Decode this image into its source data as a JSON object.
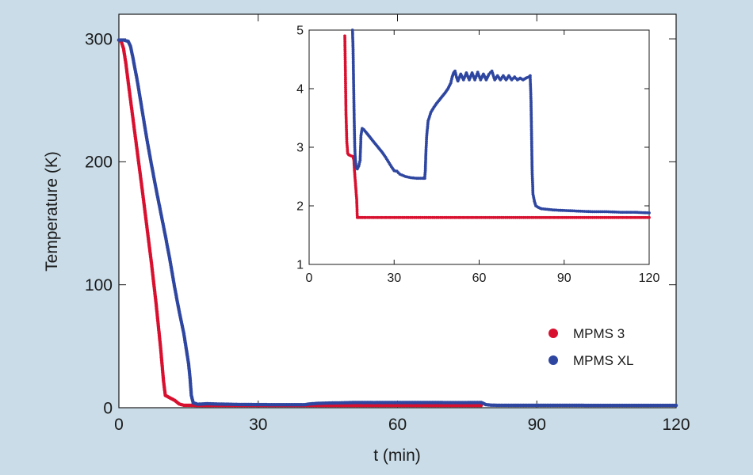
{
  "chart_data": [
    {
      "type": "scatter",
      "title": "",
      "xlabel": "t (min)",
      "ylabel": "Temperature (K)",
      "xlim": [
        0,
        120
      ],
      "ylim": [
        0,
        320
      ],
      "xticks": [
        0,
        30,
        60,
        90,
        120
      ],
      "yticks": [
        0,
        100,
        200,
        300
      ],
      "grid": false,
      "legend": "right",
      "series": [
        {
          "name": "MPMS 3",
          "color": "#d8102f",
          "points": [
            [
              0,
              299
            ],
            [
              0.5,
              298
            ],
            [
              1,
              292
            ],
            [
              1.5,
              280
            ],
            [
              2,
              265
            ],
            [
              3,
              236
            ],
            [
              4,
              207
            ],
            [
              5,
              178
            ],
            [
              6,
              148
            ],
            [
              7,
              118
            ],
            [
              8,
              85
            ],
            [
              9,
              48
            ],
            [
              9.6,
              22
            ],
            [
              10,
              10
            ],
            [
              11,
              8
            ],
            [
              12,
              6
            ],
            [
              13,
              3
            ],
            [
              14,
              2
            ],
            [
              15,
              2
            ],
            [
              16,
              1.9
            ],
            [
              17,
              1.8
            ],
            [
              18,
              1.8
            ],
            [
              20,
              1.8
            ],
            [
              30,
              1.8
            ],
            [
              40,
              1.8
            ],
            [
              50,
              1.8
            ],
            [
              60,
              1.8
            ],
            [
              70,
              1.8
            ],
            [
              78,
              1.8
            ]
          ]
        },
        {
          "name": "MPMS XL",
          "color": "#2e46a0",
          "points": [
            [
              0,
              299
            ],
            [
              1,
              299
            ],
            [
              2,
              298
            ],
            [
              2.5,
              294
            ],
            [
              3,
              285
            ],
            [
              4,
              265
            ],
            [
              5,
              242
            ],
            [
              6,
              219
            ],
            [
              7,
              198
            ],
            [
              8,
              178
            ],
            [
              9,
              159
            ],
            [
              10,
              140
            ],
            [
              11,
              120
            ],
            [
              12,
              98
            ],
            [
              13,
              78
            ],
            [
              14,
              60
            ],
            [
              14.5,
              48
            ],
            [
              15,
              36
            ],
            [
              15.3,
              25
            ],
            [
              15.6,
              10
            ],
            [
              16,
              4
            ],
            [
              17,
              2.8
            ],
            [
              18,
              3
            ],
            [
              19,
              3.2
            ],
            [
              21,
              3
            ],
            [
              25,
              2.7
            ],
            [
              30,
              2.5
            ],
            [
              35,
              2.45
            ],
            [
              40,
              2.45
            ],
            [
              41,
              3
            ],
            [
              43,
              3.6
            ],
            [
              46,
              3.85
            ],
            [
              49,
              4.05
            ],
            [
              51,
              4.25
            ],
            [
              55,
              4.15
            ],
            [
              60,
              4.2
            ],
            [
              65,
              4.2
            ],
            [
              70,
              4.15
            ],
            [
              75,
              4.15
            ],
            [
              78,
              4.2
            ],
            [
              78.5,
              3.5
            ],
            [
              79,
              2.5
            ],
            [
              80,
              2.1
            ],
            [
              82,
              1.98
            ],
            [
              85,
              1.95
            ],
            [
              90,
              1.92
            ],
            [
              100,
              1.9
            ],
            [
              110,
              1.88
            ],
            [
              120,
              1.87
            ]
          ]
        }
      ]
    },
    {
      "type": "scatter",
      "title": "",
      "xlabel": "",
      "ylabel": "",
      "xlim": [
        0,
        120
      ],
      "ylim": [
        1,
        5
      ],
      "xticks": [
        0,
        30,
        60,
        90,
        120
      ],
      "yticks": [
        1,
        2,
        3,
        4,
        5
      ],
      "grid": false,
      "series": [
        {
          "name": "MPMS 3",
          "color": "#d8102f",
          "points": [
            [
              12.6,
              4.9
            ],
            [
              12.8,
              4.3
            ],
            [
              13,
              3.6
            ],
            [
              13.3,
              3.1
            ],
            [
              13.6,
              2.9
            ],
            [
              14,
              2.87
            ],
            [
              15,
              2.85
            ],
            [
              15.5,
              2.84
            ],
            [
              15.8,
              2.78
            ],
            [
              16,
              2.6
            ],
            [
              16.4,
              2.35
            ],
            [
              16.8,
              2.1
            ],
            [
              17,
              1.8
            ],
            [
              20,
              1.8
            ],
            [
              30,
              1.8
            ],
            [
              40,
              1.8
            ],
            [
              50,
              1.8
            ],
            [
              60,
              1.8
            ],
            [
              70,
              1.8
            ],
            [
              80,
              1.8
            ],
            [
              90,
              1.8
            ],
            [
              100,
              1.8
            ],
            [
              110,
              1.8
            ],
            [
              120,
              1.8
            ]
          ]
        },
        {
          "name": "MPMS XL",
          "color": "#2e46a0",
          "points": [
            [
              15.3,
              5
            ],
            [
              15.5,
              4.7
            ],
            [
              15.7,
              4.1
            ],
            [
              15.9,
              3.5
            ],
            [
              16.1,
              3
            ],
            [
              16.3,
              2.8
            ],
            [
              16.6,
              2.66
            ],
            [
              17,
              2.63
            ],
            [
              17.5,
              2.68
            ],
            [
              18,
              2.78
            ],
            [
              18.3,
              3.2
            ],
            [
              18.7,
              3.32
            ],
            [
              19.3,
              3.3
            ],
            [
              20,
              3.26
            ],
            [
              21,
              3.2
            ],
            [
              22,
              3.14
            ],
            [
              23,
              3.08
            ],
            [
              24,
              3.02
            ],
            [
              25,
              2.96
            ],
            [
              26,
              2.9
            ],
            [
              27,
              2.83
            ],
            [
              28,
              2.75
            ],
            [
              29,
              2.67
            ],
            [
              30,
              2.6
            ],
            [
              31,
              2.59
            ],
            [
              32,
              2.54
            ],
            [
              34,
              2.5
            ],
            [
              36,
              2.48
            ],
            [
              38,
              2.47
            ],
            [
              40,
              2.47
            ],
            [
              40.8,
              2.47
            ],
            [
              41,
              2.6
            ],
            [
              41.2,
              2.9
            ],
            [
              41.5,
              3.2
            ],
            [
              42,
              3.45
            ],
            [
              43,
              3.6
            ],
            [
              44,
              3.68
            ],
            [
              45,
              3.75
            ],
            [
              46,
              3.81
            ],
            [
              47,
              3.87
            ],
            [
              48,
              3.93
            ],
            [
              49,
              4.0
            ],
            [
              50,
              4.1
            ],
            [
              50.5,
              4.2
            ],
            [
              51,
              4.27
            ],
            [
              51.5,
              4.3
            ],
            [
              52,
              4.2
            ],
            [
              52.5,
              4.13
            ],
            [
              53.5,
              4.25
            ],
            [
              54.5,
              4.15
            ],
            [
              55.5,
              4.27
            ],
            [
              56.5,
              4.15
            ],
            [
              57.5,
              4.27
            ],
            [
              58.5,
              4.15
            ],
            [
              59.5,
              4.28
            ],
            [
              60.5,
              4.15
            ],
            [
              61.5,
              4.25
            ],
            [
              62.5,
              4.15
            ],
            [
              63.5,
              4.25
            ],
            [
              64.5,
              4.3
            ],
            [
              65.5,
              4.15
            ],
            [
              66.5,
              4.22
            ],
            [
              67.5,
              4.15
            ],
            [
              68.5,
              4.22
            ],
            [
              69.5,
              4.15
            ],
            [
              70.5,
              4.22
            ],
            [
              71.5,
              4.15
            ],
            [
              72.5,
              4.2
            ],
            [
              73.5,
              4.15
            ],
            [
              74.5,
              4.18
            ],
            [
              75.5,
              4.15
            ],
            [
              76.5,
              4.18
            ],
            [
              77.5,
              4.2
            ],
            [
              78,
              4.22
            ],
            [
              78.3,
              3.8
            ],
            [
              78.5,
              3.2
            ],
            [
              78.7,
              2.6
            ],
            [
              79,
              2.2
            ],
            [
              79.5,
              2.08
            ],
            [
              80,
              2.0
            ],
            [
              81,
              1.97
            ],
            [
              82,
              1.95
            ],
            [
              84,
              1.94
            ],
            [
              86,
              1.93
            ],
            [
              90,
              1.92
            ],
            [
              95,
              1.91
            ],
            [
              100,
              1.9
            ],
            [
              105,
              1.9
            ],
            [
              110,
              1.89
            ],
            [
              115,
              1.89
            ],
            [
              120,
              1.88
            ]
          ]
        }
      ]
    }
  ]
}
